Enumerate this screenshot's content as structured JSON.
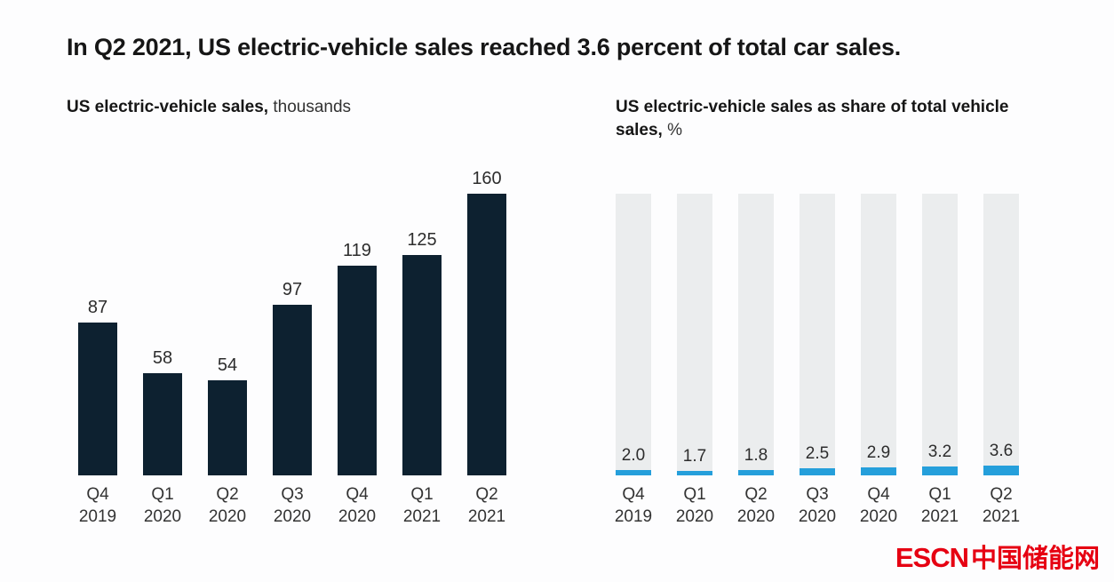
{
  "title": "In Q2 2021, US electric-vehicle sales reached 3.6 percent of total car sales.",
  "colors": {
    "bar_dark": "#0d2130",
    "bar_gray": "#ebedee",
    "marker_blue": "#259fdb",
    "logo_red": "#e60012"
  },
  "categories": [
    {
      "line1": "Q4",
      "line2": "2019"
    },
    {
      "line1": "Q1",
      "line2": "2020"
    },
    {
      "line1": "Q2",
      "line2": "2020"
    },
    {
      "line1": "Q3",
      "line2": "2020"
    },
    {
      "line1": "Q4",
      "line2": "2020"
    },
    {
      "line1": "Q1",
      "line2": "2021"
    },
    {
      "line1": "Q2",
      "line2": "2021"
    }
  ],
  "chart_data": [
    {
      "type": "bar",
      "title_bold": "US electric-vehicle sales,",
      "title_regular": "thousands",
      "categories": [
        "Q4 2019",
        "Q1 2020",
        "Q2 2020",
        "Q3 2020",
        "Q4 2020",
        "Q1 2021",
        "Q2 2021"
      ],
      "values": [
        87,
        58,
        54,
        97,
        119,
        125,
        160
      ],
      "data_labels": [
        "87",
        "58",
        "54",
        "97",
        "119",
        "125",
        "160"
      ],
      "ylim": [
        0,
        160
      ],
      "grid": false,
      "legend": false,
      "bar_color": "#0d2130"
    },
    {
      "type": "bar",
      "title_bold": "US electric-vehicle sales as share of total vehicle sales,",
      "title_regular": "%",
      "categories": [
        "Q4 2019",
        "Q1 2020",
        "Q2 2020",
        "Q3 2020",
        "Q4 2020",
        "Q1 2021",
        "Q2 2021"
      ],
      "values": [
        2.0,
        1.7,
        1.8,
        2.5,
        2.9,
        3.2,
        3.6
      ],
      "data_labels": [
        "2.0",
        "1.7",
        "1.8",
        "2.5",
        "2.9",
        "3.2",
        "3.6"
      ],
      "background_bar_value": 100,
      "ylim": [
        0,
        100
      ],
      "grid": false,
      "legend": false,
      "bar_color": "#259fdb",
      "background_bar_color": "#ebedee"
    }
  ],
  "logo": {
    "latin": "ESCN",
    "chinese": "中国储能网"
  }
}
